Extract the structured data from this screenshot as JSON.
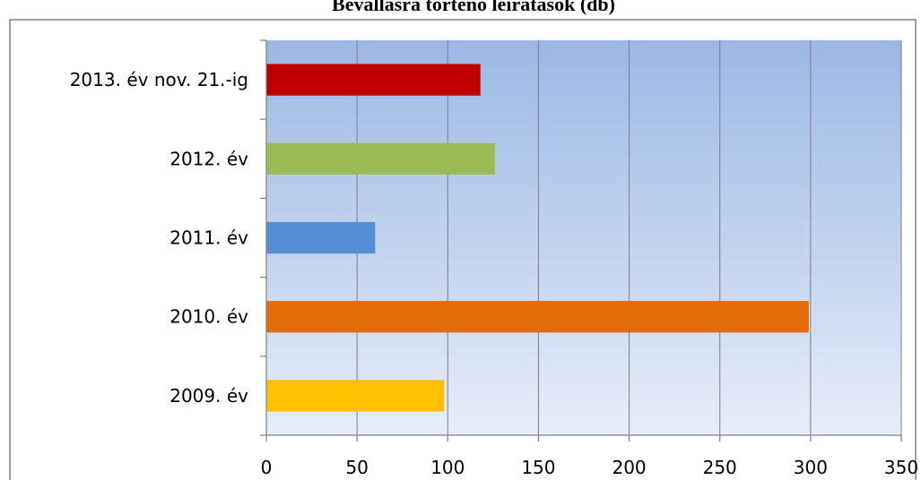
{
  "chart_data": {
    "type": "bar",
    "orientation": "horizontal",
    "title": "Bevallásra történő leiratások (db)",
    "categories": [
      "2009. év",
      "2010. év",
      "2011. év",
      "2012. év",
      "2013. év nov. 21.-ig"
    ],
    "values": [
      98,
      299,
      60,
      126,
      118
    ],
    "colors": [
      "#FFC000",
      "#E46C0A",
      "#558ED5",
      "#9BBB59",
      "#C00000"
    ],
    "xlim": [
      0,
      350
    ],
    "x_ticks": [
      0,
      50,
      100,
      150,
      200,
      250,
      300,
      350
    ],
    "xlabel": "",
    "ylabel": "",
    "grid": "vertical",
    "legend": "none",
    "plot_background": [
      "#9BB7E3",
      "#E6EDF8"
    ]
  }
}
